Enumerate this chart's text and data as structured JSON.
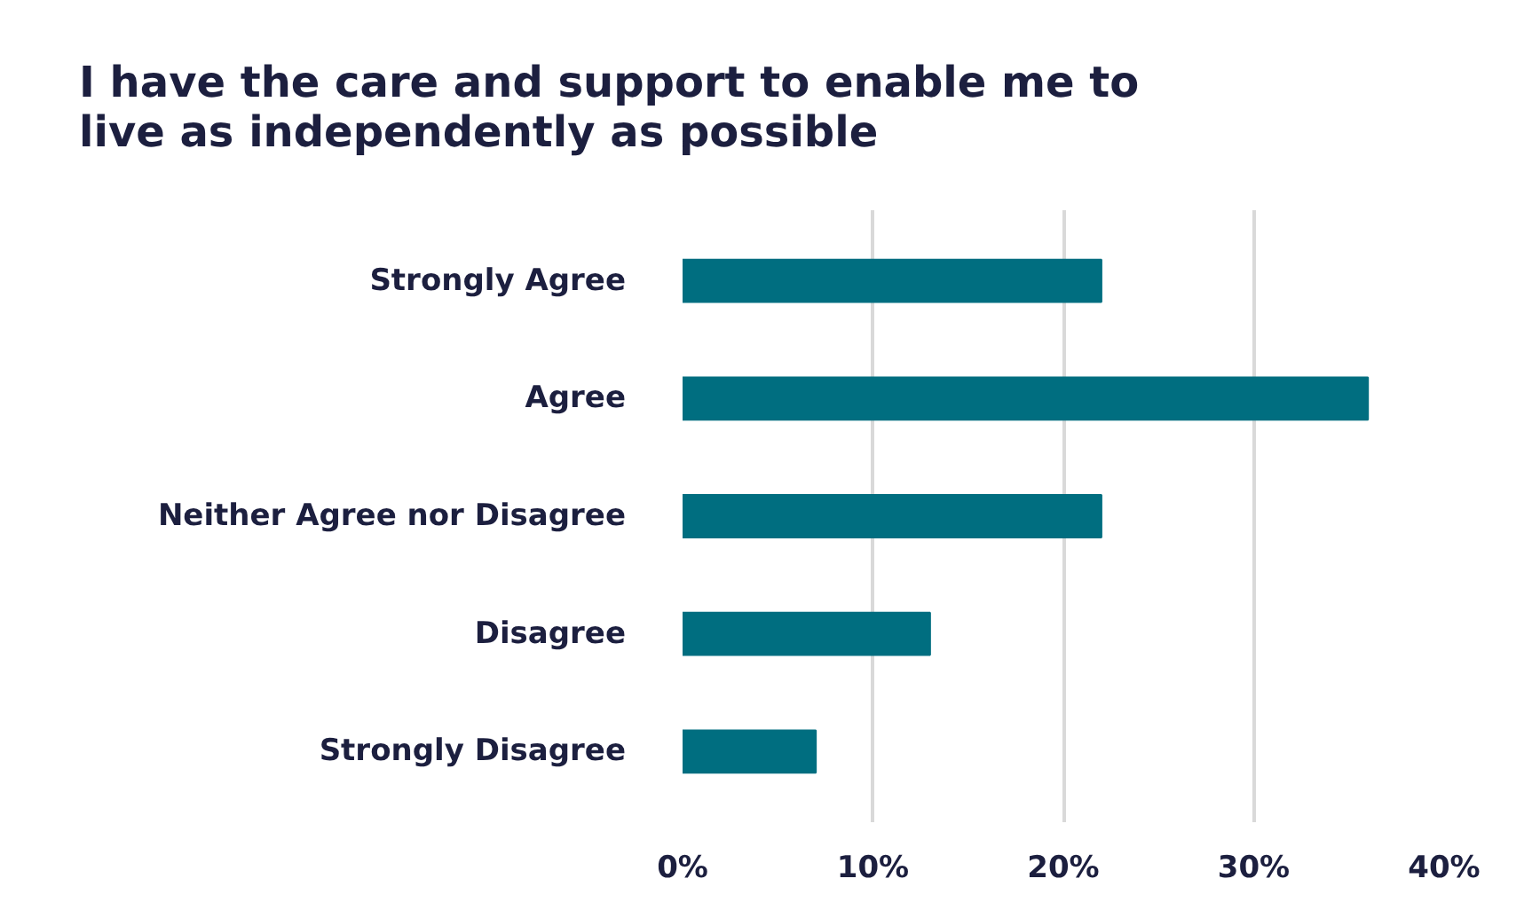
{
  "chart_data": {
    "type": "bar",
    "orientation": "horizontal",
    "title": "I have the care and support to enable me to live as independently as possible",
    "categories": [
      "Strongly Agree",
      "Agree",
      "Neither Agree nor Disagree",
      "Disagree",
      "Strongly Disagree"
    ],
    "values": [
      22,
      36,
      22,
      13,
      7
    ],
    "color": "#006e80",
    "xlim": [
      0,
      40
    ],
    "xticks": [
      {
        "value": 0,
        "label": "0%"
      },
      {
        "value": 10,
        "label": "10%"
      },
      {
        "value": 20,
        "label": "20%"
      },
      {
        "value": 30,
        "label": "30%"
      },
      {
        "value": 40,
        "label": "40%"
      }
    ],
    "grid": "x"
  }
}
